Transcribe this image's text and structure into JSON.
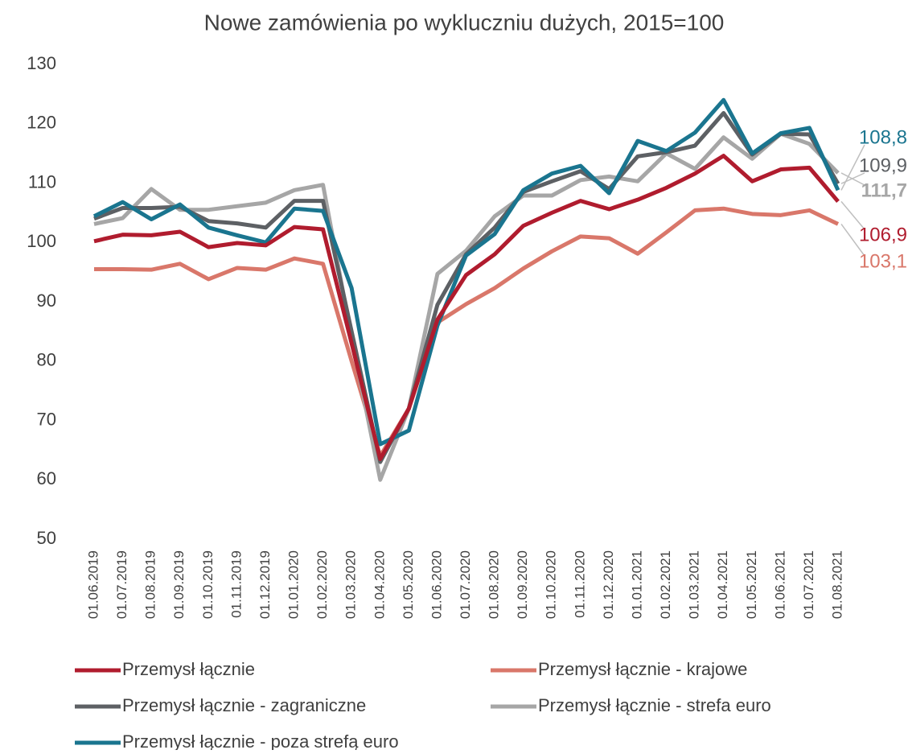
{
  "chart_data": {
    "type": "line",
    "title": "Nowe zamówienia po wykluczniu dużych, 2015=100",
    "categories": [
      "01.06.2019",
      "01.07.2019",
      "01.08.2019",
      "01.09.2019",
      "01.10.2019",
      "01.11.2019",
      "01.12.2019",
      "01.01.2020",
      "01.02.2020",
      "01.03.2020",
      "01.04.2020",
      "01.05.2020",
      "01.06.2020",
      "01.07.2020",
      "01.08.2020",
      "01.09.2020",
      "01.10.2020",
      "01.11.2020",
      "01.12.2020",
      "01.01.2021",
      "01.02.2021",
      "01.03.2021",
      "01.04.2021",
      "01.05.2021",
      "01.06.2021",
      "01.07.2021",
      "01.08.2021"
    ],
    "ylim": [
      50,
      130
    ],
    "yticks": [
      50,
      60,
      70,
      80,
      90,
      100,
      110,
      120,
      130
    ],
    "series": [
      {
        "name": "Przemysł łącznie",
        "color": "#b01c2e",
        "values": [
          100.2,
          101.3,
          101.2,
          101.8,
          99.2,
          99.9,
          99.5,
          102.6,
          102.2,
          83,
          63.5,
          72,
          87,
          94.5,
          98,
          102.8,
          105,
          107,
          105.6,
          107.2,
          109.2,
          111.6,
          114.6,
          110.3,
          112.3,
          112.6,
          106.9
        ],
        "value_labels": [
          null,
          null,
          null,
          null,
          null,
          null,
          null,
          null,
          null,
          null,
          null,
          null,
          null,
          null,
          null,
          null,
          null,
          null,
          null,
          null,
          null,
          null,
          null,
          null,
          null,
          null,
          "106,9"
        ]
      },
      {
        "name": "Przemysł łącznie - krajowe",
        "color": "#d9776a",
        "values": [
          95.5,
          95.5,
          95.4,
          96.4,
          93.8,
          95.7,
          95.4,
          97.3,
          96.4,
          80,
          64,
          72,
          86.5,
          89.6,
          92.3,
          95.6,
          98.5,
          101,
          100.7,
          98.1,
          101.7,
          105.4,
          105.7,
          104.8,
          104.6,
          105.4,
          103.1
        ],
        "value_labels": [
          null,
          null,
          null,
          null,
          null,
          null,
          null,
          null,
          null,
          null,
          null,
          null,
          null,
          null,
          null,
          null,
          null,
          null,
          null,
          null,
          null,
          null,
          null,
          null,
          null,
          null,
          "103,1"
        ]
      },
      {
        "name": "Przemysł łącznie - zagraniczne",
        "color": "#5d6064",
        "values": [
          104,
          105.8,
          105.8,
          106,
          103.6,
          103.2,
          102.5,
          107,
          107,
          85,
          63,
          72,
          89.5,
          98,
          102.5,
          108.5,
          110.3,
          112,
          109,
          114.5,
          115.2,
          116.3,
          121.8,
          114.8,
          118.3,
          118.2,
          109.9
        ],
        "value_labels": [
          null,
          null,
          null,
          null,
          null,
          null,
          null,
          null,
          null,
          null,
          null,
          null,
          null,
          null,
          null,
          null,
          null,
          null,
          null,
          null,
          null,
          null,
          null,
          null,
          null,
          null,
          "109,9"
        ]
      },
      {
        "name": "Przemysł łącznie - strefa euro",
        "color": "#a6a6a6",
        "values": [
          103.1,
          104.1,
          109,
          105.5,
          105.5,
          106.1,
          106.7,
          108.8,
          109.7,
          84,
          60,
          72,
          94.7,
          98.6,
          104.4,
          107.9,
          107.9,
          110.5,
          111.1,
          110.3,
          115,
          112.4,
          117.7,
          114.1,
          118.3,
          116.6,
          111.7
        ],
        "value_labels": [
          null,
          null,
          null,
          null,
          null,
          null,
          null,
          null,
          null,
          null,
          null,
          null,
          null,
          null,
          null,
          null,
          null,
          null,
          null,
          null,
          null,
          null,
          null,
          null,
          null,
          null,
          "111,7"
        ]
      },
      {
        "name": "Przemysł łącznie - poza strefą euro",
        "color": "#1a758f",
        "values": [
          104.4,
          106.8,
          103.9,
          106.4,
          102.5,
          101.2,
          100,
          105.7,
          105.3,
          92.3,
          66,
          68.3,
          86,
          97.8,
          101.4,
          108.8,
          111.6,
          112.9,
          108.3,
          117.1,
          115.4,
          118.5,
          124,
          115,
          118.4,
          119.3,
          108.8
        ],
        "value_labels": [
          null,
          null,
          null,
          null,
          null,
          null,
          null,
          null,
          null,
          null,
          null,
          null,
          null,
          null,
          null,
          null,
          null,
          null,
          null,
          null,
          null,
          null,
          null,
          null,
          null,
          null,
          "108,8"
        ]
      }
    ]
  }
}
